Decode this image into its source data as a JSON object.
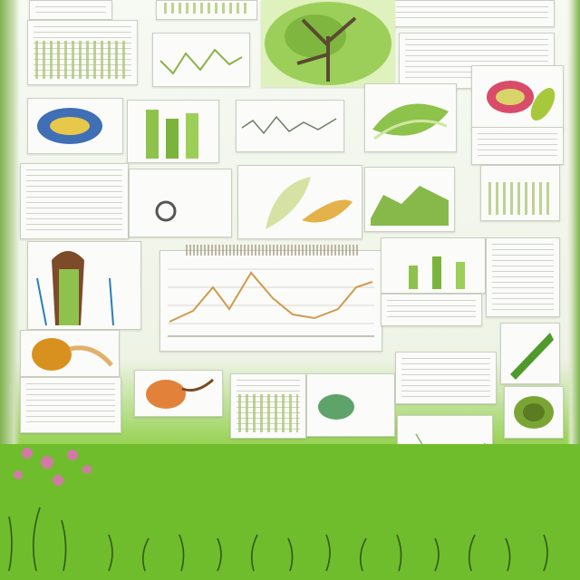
{
  "palette": {
    "grass": "#6fbd2c",
    "line_chart": "#d09a4f",
    "bars": "#a9c46f",
    "paper": "#fbfcf9"
  },
  "icons": [
    "tree-illustration",
    "leaf-illustration",
    "seed-illustration",
    "plant-stem-illustration",
    "cabbage-illustration"
  ]
}
